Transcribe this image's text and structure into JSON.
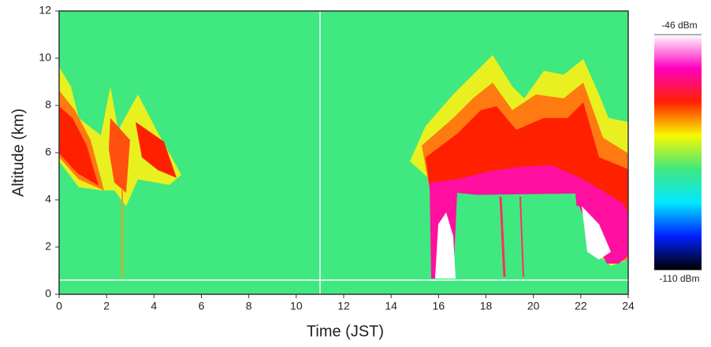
{
  "chart_data": {
    "type": "heatmap",
    "x_label": "Time (JST)",
    "y_label": "Altitude (km)",
    "xlim": [
      0,
      24
    ],
    "xticks": [
      0,
      2,
      4,
      6,
      8,
      10,
      12,
      14,
      16,
      18,
      20,
      22,
      24
    ],
    "ylim": [
      0,
      12
    ],
    "yticks": [
      0,
      2,
      4,
      6,
      8,
      10,
      12
    ],
    "clim": [
      -110,
      -46
    ],
    "cticks": [
      {
        "value": -46,
        "label": "-46 dBm"
      },
      {
        "value": -110,
        "label": "-110 dBm"
      }
    ],
    "colormap": [
      "#000000",
      "#0020ff",
      "#00e8ff",
      "#40e880",
      "#f8f800",
      "#ff2000",
      "#ff00c0",
      "#ffffff"
    ]
  }
}
